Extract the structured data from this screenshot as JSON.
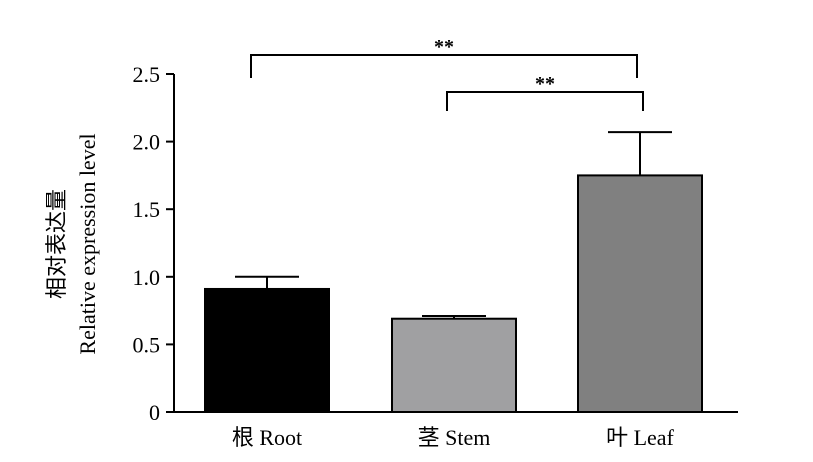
{
  "chart_data": {
    "type": "bar",
    "categories": [
      "根 Root",
      "茎 Stem",
      "叶 Leaf"
    ],
    "values": [
      0.91,
      0.69,
      1.75
    ],
    "errors": [
      0.09,
      0.02,
      0.32
    ],
    "colors": [
      "#000000",
      "#a0a0a2",
      "#808080"
    ],
    "ylabel_lines": [
      "相对表达量",
      "Relative expression level"
    ],
    "xlabel": "",
    "ylim": [
      0,
      2.5
    ],
    "yticks": [
      0,
      0.5,
      1.0,
      1.5,
      2.0,
      2.5
    ],
    "ytick_labels": [
      "0",
      "0.5",
      "1.0",
      "1.5",
      "2.0",
      "2.5"
    ],
    "grid": false,
    "significance": [
      {
        "from": 0,
        "to": 2,
        "label": "**"
      },
      {
        "from": 1,
        "to": 2,
        "label": "**"
      }
    ]
  }
}
